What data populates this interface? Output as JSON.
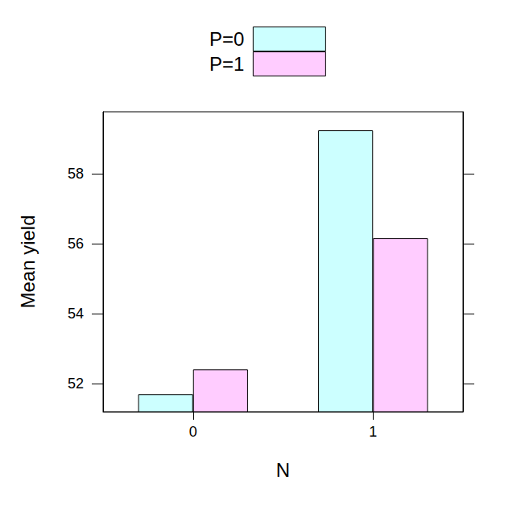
{
  "chart_data": {
    "type": "bar",
    "x_label": "N",
    "y_label": "Mean yield",
    "categories": [
      "0",
      "1"
    ],
    "series": [
      {
        "name": "P=0",
        "color": "#ccffff",
        "values": [
          51.7,
          59.24
        ]
      },
      {
        "name": "P=1",
        "color": "#ffccff",
        "values": [
          52.41,
          56.16
        ]
      }
    ],
    "ylim": [
      51.2,
      59.77
    ],
    "yticks": [
      52,
      54,
      56,
      58
    ],
    "legend": "top",
    "grid": false
  }
}
